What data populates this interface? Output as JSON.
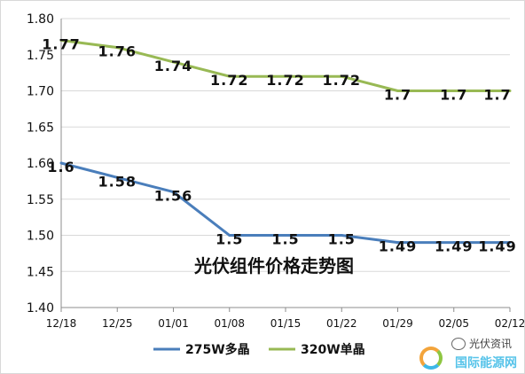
{
  "chart_data": {
    "type": "line",
    "title": "光伏组件价格走势图",
    "categories": [
      "12/18",
      "12/25",
      "01/01",
      "01/08",
      "01/15",
      "01/22",
      "01/29",
      "02/05",
      "02/12"
    ],
    "y_ticks": [
      "1.40",
      "1.45",
      "1.50",
      "1.55",
      "1.60",
      "1.65",
      "1.70",
      "1.75",
      "1.80"
    ],
    "ylim": [
      1.4,
      1.8
    ],
    "grid": "horizontal",
    "legend_position": "bottom",
    "series": [
      {
        "name": "275W多晶",
        "color": "#4a7ebb",
        "values": [
          1.6,
          1.58,
          1.56,
          1.5,
          1.5,
          1.5,
          1.49,
          1.49,
          1.49
        ],
        "labels": [
          "1.6",
          "1.58",
          "1.56",
          "1.5",
          "1.5",
          "1.5",
          "1.49",
          "1.49",
          "1.49"
        ]
      },
      {
        "name": "320W单晶",
        "color": "#98b954",
        "values": [
          1.77,
          1.76,
          1.74,
          1.72,
          1.72,
          1.72,
          1.7,
          1.7,
          1.7
        ],
        "labels": [
          "1.77",
          "1.76",
          "1.74",
          "1.72",
          "1.72",
          "1.72",
          "1.7",
          "1.7",
          "1.7"
        ]
      }
    ]
  },
  "watermark": {
    "account": "光伏资讯",
    "site": "国际能源网",
    "icon": "wechat-icon"
  }
}
